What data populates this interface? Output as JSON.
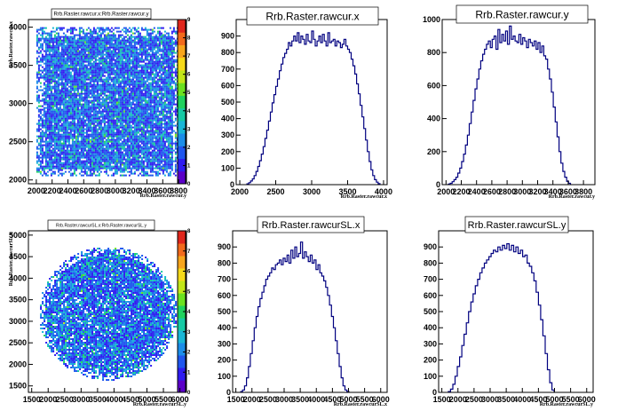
{
  "palette": [
    "#5b00c8",
    "#2f1cf0",
    "#1f56ee",
    "#1b8de8",
    "#19b6d6",
    "#16c9a4",
    "#1fd25d",
    "#6be11f",
    "#c2e618",
    "#f5d91a",
    "#f7a51c",
    "#f26a1c",
    "#e0261c"
  ],
  "chart_data": [
    {
      "type": "heatmap",
      "title": "Rrb.Raster.rawcur.x:Rrb.Raster.rawcur.y",
      "xlabel": "Rrb.Raster.rawcur.y",
      "ylabel": "Rrb.Raster.rawcur.x",
      "xlim": [
        1900,
        3900
      ],
      "ylim": [
        1950,
        4100
      ],
      "xticks": [
        "2000",
        "2200",
        "2400",
        "2600",
        "2800",
        "3000",
        "3200",
        "3400",
        "3600",
        "3800"
      ],
      "yticks": [
        "2000",
        "2500",
        "3000",
        "3500",
        "4000"
      ],
      "colorbar_ticks": [
        "0",
        "1",
        "2",
        "3",
        "4",
        "5",
        "6",
        "7",
        "8",
        "9"
      ],
      "zlim": [
        0,
        9
      ],
      "shape": "square",
      "extent": {
        "x": [
          2000,
          3800
        ],
        "y": [
          2050,
          4000
        ]
      }
    },
    {
      "type": "bar",
      "title": "Rrb.Raster.rawcur.x",
      "xlabel": "Rrb.Raster.rawcur.x",
      "xlim": [
        1950,
        4050
      ],
      "ylim": [
        0,
        1000
      ],
      "xticks": [
        "2000",
        "2500",
        "3000",
        "3500",
        "4000"
      ],
      "yticks": [
        "0",
        "100",
        "200",
        "300",
        "400",
        "500",
        "600",
        "700",
        "800",
        "900"
      ],
      "bin_start": 2100,
      "bin_width": 25,
      "values": [
        5,
        12,
        22,
        35,
        55,
        80,
        110,
        145,
        185,
        230,
        280,
        330,
        385,
        440,
        495,
        545,
        595,
        640,
        690,
        730,
        770,
        795,
        820,
        860,
        840,
        870,
        900,
        870,
        920,
        860,
        900,
        880,
        850,
        910,
        870,
        860,
        930,
        880,
        840,
        870,
        900,
        860,
        910,
        870,
        840,
        920,
        860,
        870,
        880,
        840,
        870,
        860,
        830,
        850,
        880,
        840,
        820,
        800,
        760,
        720,
        670,
        610,
        550,
        480,
        410,
        340,
        270,
        200,
        140,
        90,
        55,
        30,
        15,
        6
      ]
    },
    {
      "type": "bar",
      "title": "Rrb.Raster.rawcur.y",
      "xlabel": "Rrb.Raster.rawcur.y",
      "xlim": [
        1950,
        3950
      ],
      "ylim": [
        0,
        1000
      ],
      "xticks": [
        "2000",
        "2200",
        "2400",
        "2600",
        "2800",
        "3000",
        "3200",
        "3400",
        "3600",
        "3800"
      ],
      "yticks": [
        "0",
        "200",
        "400",
        "600",
        "800",
        "1000"
      ],
      "bin_start": 2030,
      "bin_width": 25,
      "values": [
        3,
        8,
        18,
        30,
        45,
        70,
        100,
        140,
        185,
        240,
        300,
        370,
        440,
        510,
        580,
        640,
        700,
        750,
        790,
        820,
        850,
        870,
        830,
        880,
        900,
        820,
        940,
        860,
        910,
        870,
        930,
        850,
        960,
        880,
        900,
        870,
        860,
        910,
        850,
        890,
        870,
        830,
        880,
        860,
        840,
        870,
        820,
        860,
        800,
        840,
        780,
        760,
        700,
        640,
        560,
        470,
        380,
        290,
        200,
        130,
        80,
        45,
        20,
        8
      ]
    },
    {
      "type": "heatmap",
      "title": "Rrb.Raster.rawcurSL.x:Rrb.Raster.rawcurSL.y",
      "xlabel": "Rrb.Raster.rawcurSL.y",
      "ylabel": "Rrb.Raster.rawcurSL.x",
      "xlim": [
        1400,
        6200
      ],
      "ylim": [
        1350,
        5100
      ],
      "xticks": [
        "1500",
        "2000",
        "2500",
        "3000",
        "3500",
        "4000",
        "4500",
        "5000",
        "5500",
        "6000"
      ],
      "yticks": [
        "1500",
        "2000",
        "2500",
        "3000",
        "3500",
        "4000",
        "4500",
        "5000"
      ],
      "colorbar_ticks": [
        "0",
        "1",
        "2",
        "3",
        "4",
        "5",
        "6",
        "7",
        "8"
      ],
      "zlim": [
        0,
        8
      ],
      "shape": "circle",
      "extent": {
        "x": [
          1700,
          5900
        ],
        "y": [
          1650,
          4750
        ]
      }
    },
    {
      "type": "bar",
      "title": "Rrb.Raster.rawcurSL.x",
      "xlabel": "Rrb.Raster.rawcurSL.x",
      "xlim": [
        1400,
        6200
      ],
      "ylim": [
        0,
        1000
      ],
      "xticks": [
        "1500",
        "2000",
        "2500",
        "3000",
        "3500",
        "4000",
        "4500",
        "5000",
        "5500",
        "6000"
      ],
      "yticks": [
        "0",
        "100",
        "200",
        "300",
        "400",
        "500",
        "600",
        "700",
        "800",
        "900"
      ],
      "bin_start": 1650,
      "bin_width": 60,
      "values": [
        5,
        15,
        40,
        90,
        160,
        240,
        320,
        400,
        470,
        530,
        580,
        620,
        660,
        700,
        720,
        740,
        770,
        760,
        790,
        800,
        820,
        790,
        830,
        810,
        850,
        800,
        880,
        830,
        900,
        840,
        860,
        930,
        830,
        870,
        840,
        810,
        850,
        800,
        820,
        760,
        790,
        740,
        720,
        690,
        650,
        600,
        540,
        470,
        400,
        320,
        240,
        160,
        90,
        40,
        15,
        5
      ]
    },
    {
      "type": "bar",
      "title": "Rrb.Raster.rawcurSL.y",
      "xlabel": "Rrb.Raster.rawcurSL.y",
      "xlim": [
        1400,
        6200
      ],
      "ylim": [
        0,
        1000
      ],
      "xticks": [
        "1500",
        "2000",
        "2500",
        "3000",
        "3500",
        "4000",
        "4500",
        "5000",
        "5500",
        "6000"
      ],
      "yticks": [
        "0",
        "100",
        "200",
        "300",
        "400",
        "500",
        "600",
        "700",
        "800",
        "900"
      ],
      "bin_start": 1700,
      "bin_width": 70,
      "values": [
        5,
        20,
        50,
        100,
        160,
        220,
        290,
        360,
        430,
        500,
        560,
        610,
        660,
        700,
        740,
        770,
        800,
        820,
        840,
        860,
        880,
        870,
        900,
        880,
        910,
        890,
        920,
        880,
        910,
        870,
        900,
        860,
        880,
        840,
        850,
        800,
        780,
        740,
        690,
        620,
        540,
        450,
        350,
        240,
        140,
        60,
        15
      ]
    }
  ]
}
